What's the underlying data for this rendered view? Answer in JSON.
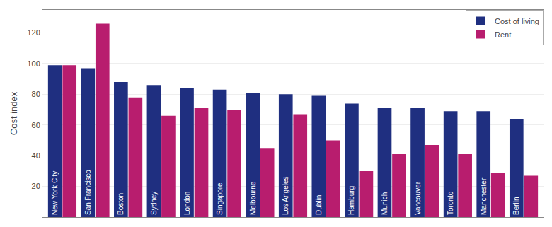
{
  "chart_data": {
    "type": "bar",
    "categories": [
      "New York City",
      "San Francisco",
      "Boston",
      "Sydney",
      "London",
      "Singapore",
      "Melbourne",
      "Los Angeles",
      "Dublin",
      "Hamburg",
      "Munich",
      "Vancouver",
      "Toronto",
      "Manchester",
      "Berlin"
    ],
    "series": [
      {
        "name": "Cost of living",
        "color": "#1F2F80",
        "values": [
          99,
          97,
          88,
          86,
          84,
          83,
          81,
          80,
          79,
          74,
          71,
          71,
          69,
          69,
          64
        ]
      },
      {
        "name": "Rent",
        "color": "#B81D6E",
        "values": [
          99,
          126,
          78,
          66,
          71,
          70,
          45,
          67,
          50,
          30,
          41,
          47,
          41,
          29,
          27
        ]
      }
    ],
    "ylabel": "Cost index",
    "ylim": [
      0,
      135
    ],
    "yticks": [
      20,
      40,
      60,
      80,
      100,
      120
    ],
    "grid": true,
    "legend": "upper right",
    "tick_labels": "y"
  }
}
